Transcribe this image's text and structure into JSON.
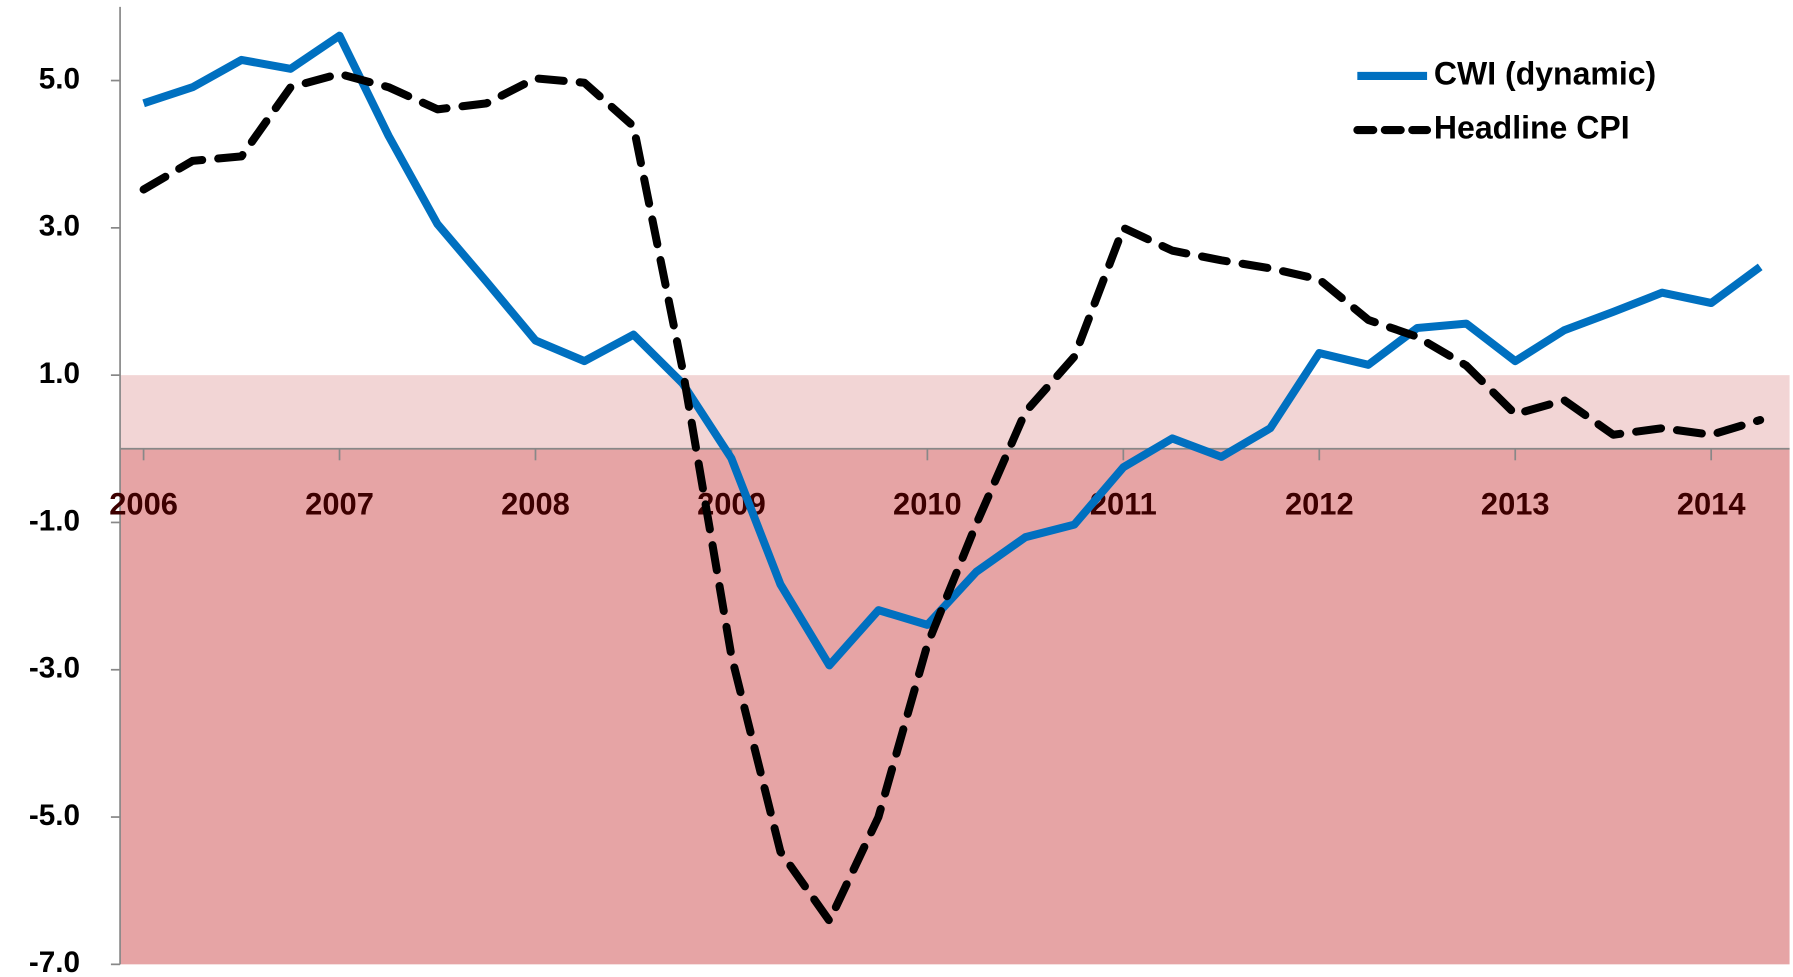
{
  "chart_data": {
    "type": "line",
    "x": [
      2006,
      2006.25,
      2006.5,
      2006.75,
      2007,
      2007.25,
      2007.5,
      2007.75,
      2008,
      2008.25,
      2008.5,
      2008.75,
      2009,
      2009.25,
      2009.5,
      2009.75,
      2010,
      2010.25,
      2010.5,
      2010.75,
      2011,
      2011.25,
      2011.5,
      2011.75,
      2012,
      2012.25,
      2012.5,
      2012.75,
      2013,
      2013.25,
      2013.5,
      2013.75,
      2014,
      2014.25
    ],
    "series": [
      {
        "name": "CWI (dynamic)",
        "color": "#0070c0",
        "dash": false,
        "values": [
          4.69,
          4.91,
          5.28,
          5.16,
          5.61,
          4.25,
          3.05,
          2.27,
          1.47,
          1.19,
          1.55,
          0.89,
          -0.13,
          -1.84,
          -2.94,
          -2.19,
          -2.39,
          -1.67,
          -1.2,
          -1.03,
          -0.25,
          0.14,
          -0.11,
          0.28,
          1.3,
          1.14,
          1.64,
          1.7,
          1.19,
          1.61,
          1.86,
          2.12,
          1.98,
          2.47
        ]
      },
      {
        "name": "Headline CPI",
        "color": "#000000",
        "dash": true,
        "values": [
          3.52,
          3.91,
          3.97,
          4.91,
          5.09,
          4.91,
          4.61,
          4.69,
          5.03,
          4.97,
          4.38,
          1.09,
          -2.81,
          -5.47,
          -6.41,
          -5.0,
          -2.66,
          -1.02,
          0.5,
          1.25,
          3.0,
          2.69,
          2.56,
          2.45,
          2.3,
          1.75,
          1.52,
          1.13,
          0.47,
          0.66,
          0.19,
          0.28,
          0.19,
          0.39
        ]
      }
    ],
    "bands": [
      {
        "from": 0,
        "to": 1,
        "color": "#f2d5d5"
      },
      {
        "from": -7,
        "to": 0,
        "color": "#e6a4a5"
      }
    ],
    "xlim": [
      2005.88,
      2014.4
    ],
    "xticks": [
      2006,
      2007,
      2008,
      2009,
      2010,
      2011,
      2012,
      2013,
      2014
    ],
    "ylim": [
      -7,
      6
    ],
    "yticks": [
      {
        "value": -7,
        "label": "-7.0"
      },
      {
        "value": -5,
        "label": "-5.0"
      },
      {
        "value": -3,
        "label": "-3.0"
      },
      {
        "value": -1,
        "label": "-1.0"
      },
      {
        "value": 1,
        "label": "1.0"
      },
      {
        "value": 3,
        "label": "3.0"
      },
      {
        "value": 5,
        "label": "5.0"
      }
    ],
    "legend": "top-right"
  }
}
